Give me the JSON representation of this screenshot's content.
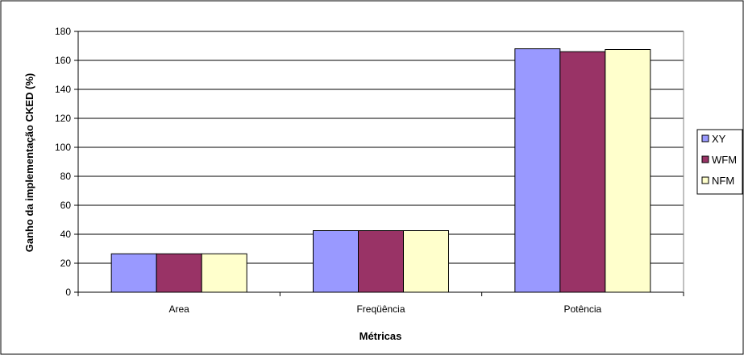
{
  "chart_data": {
    "type": "bar",
    "title": "",
    "xlabel": "Métricas",
    "ylabel": "Ganho da implementação CKED (%)",
    "categories": [
      "Area",
      "Freqüência",
      "Potência"
    ],
    "series": [
      {
        "name": "XY",
        "values": [
          26.5,
          42.5,
          168
        ],
        "color": "#9999ff"
      },
      {
        "name": "WFM",
        "values": [
          26.5,
          42.5,
          166
        ],
        "color": "#993366"
      },
      {
        "name": "NFM",
        "values": [
          26.5,
          42.5,
          167.5
        ],
        "color": "#ffffcc"
      }
    ],
    "ylim": [
      0,
      180
    ],
    "yticks": [
      0,
      20,
      40,
      60,
      80,
      100,
      120,
      140,
      160,
      180
    ],
    "grid": true,
    "legend_position": "right"
  }
}
